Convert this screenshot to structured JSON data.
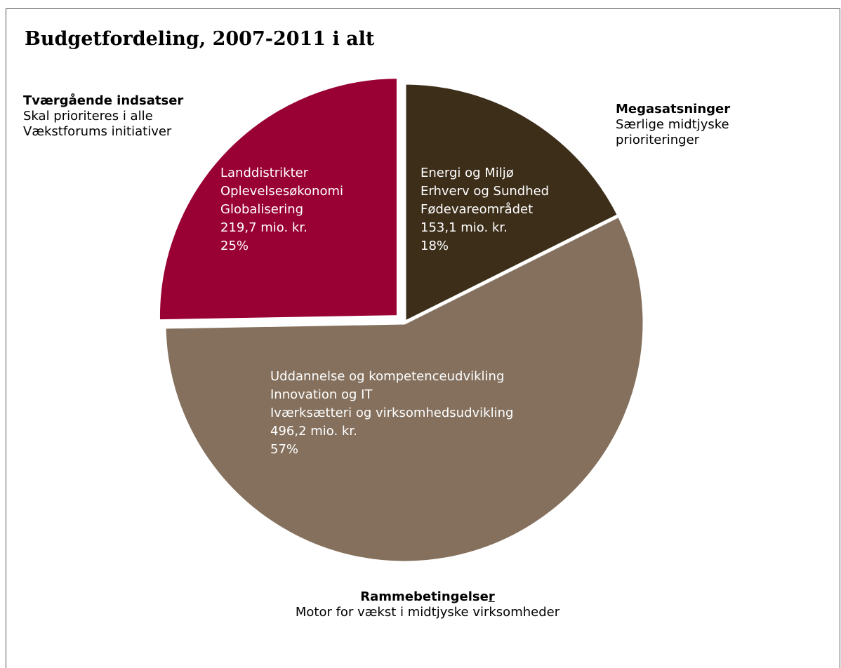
{
  "title": "Budgetfordeling, 2007-2011 i alt",
  "colors": {
    "tvaergaaende": "#990033",
    "mega": "#3d2e1a",
    "ramme": "#84705d",
    "separator": "#ffffff"
  },
  "chart_data": {
    "type": "pie",
    "title": "Budgetfordeling, 2007-2011 i alt",
    "unit": "mio. kr.",
    "slices": [
      {
        "name": "Megasatsninger",
        "value": 153.1,
        "percent": 18,
        "color": "#3d2e1a",
        "exploded": false,
        "label_lines": [
          "Energi og Miljø",
          "Erhverv og Sundhed",
          "Fødevareområdet",
          "153,1 mio. kr.",
          "18%"
        ],
        "callout": {
          "heading": "Megasatsninger",
          "lines": [
            "Særlige midtjyske",
            "prioriteringer"
          ]
        }
      },
      {
        "name": "Rammebetingelser",
        "value": 496.2,
        "percent": 57,
        "color": "#84705d",
        "exploded": false,
        "label_lines": [
          "Uddannelse og kompetenceudvikling",
          "Innovation og IT",
          "Iværksætteri og virksomhedsudvikling",
          "496,2 mio. kr.",
          "57%"
        ],
        "callout": {
          "heading_main": "Rammebetingelse",
          "heading_end": "r",
          "lines": [
            "Motor for vækst i midtjyske virksomheder"
          ]
        }
      },
      {
        "name": "Tværgående indsatser",
        "value": 219.7,
        "percent": 25,
        "color": "#990033",
        "exploded": true,
        "label_lines": [
          "Landdistrikter",
          "Oplevelsesøkonomi",
          "Globalisering",
          "219,7 mio. kr.",
          "25%"
        ],
        "callout": {
          "heading": "Tværgående indsatser",
          "lines": [
            "Skal prioriteres i alle",
            "Vækstforums initiativer"
          ]
        }
      }
    ]
  }
}
